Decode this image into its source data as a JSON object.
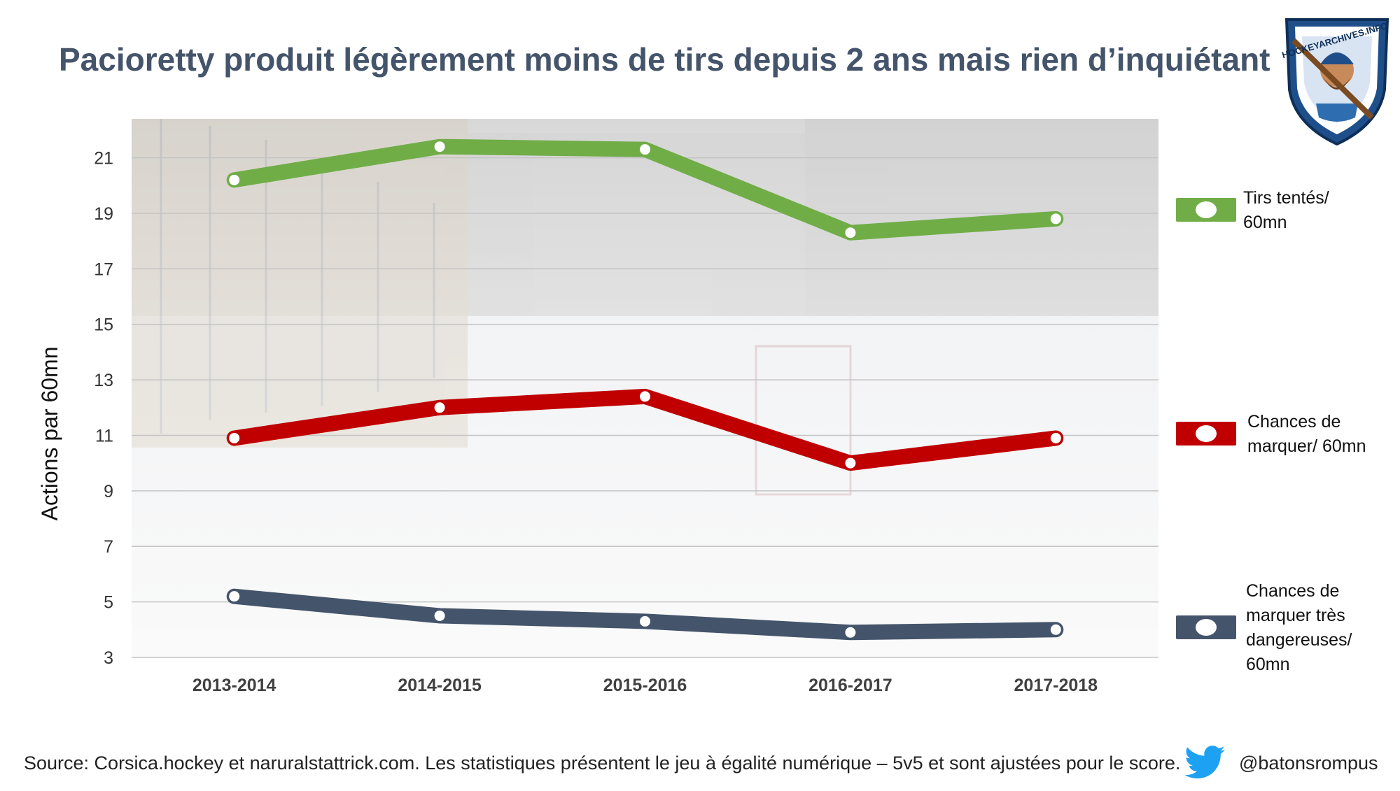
{
  "title": "Pacioretty produit légèrement moins de tirs depuis 2 ans mais rien d’inquiétant",
  "footer": {
    "source": "Source: Corsica.hockey et naruralstattrick.com. Les statistiques présentent le jeu à égalité numérique – 5v5 et sont ajustées pour le score.",
    "handle": "@batonsrompus"
  },
  "logo": {
    "text": "HOCKEYARCHIVES.INFO",
    "icon": "hockeyarchives-logo"
  },
  "chart_data": {
    "type": "line",
    "ylabel": "Actions par 60mn",
    "xlabel": "",
    "ylim": [
      3,
      22
    ],
    "yticks": [
      3,
      5,
      7,
      9,
      11,
      13,
      15,
      17,
      19,
      21
    ],
    "categories": [
      "2013-2014",
      "2014-2015",
      "2015-2016",
      "2016-2017",
      "2017-2018"
    ],
    "grid": true,
    "legend_position": "right",
    "series": [
      {
        "name": "Tirs tentés/ 60mn",
        "color": "#70ad47",
        "values": [
          20.2,
          21.4,
          21.3,
          18.3,
          18.8
        ]
      },
      {
        "name": "Chances de marquer/ 60mn",
        "color": "#c00000",
        "values": [
          10.9,
          12.0,
          12.4,
          10.0,
          10.9
        ]
      },
      {
        "name": "Chances de marquer très dangereuses/ 60mn",
        "color": "#44546a",
        "values": [
          5.2,
          4.5,
          4.3,
          3.9,
          4.0
        ]
      }
    ]
  }
}
